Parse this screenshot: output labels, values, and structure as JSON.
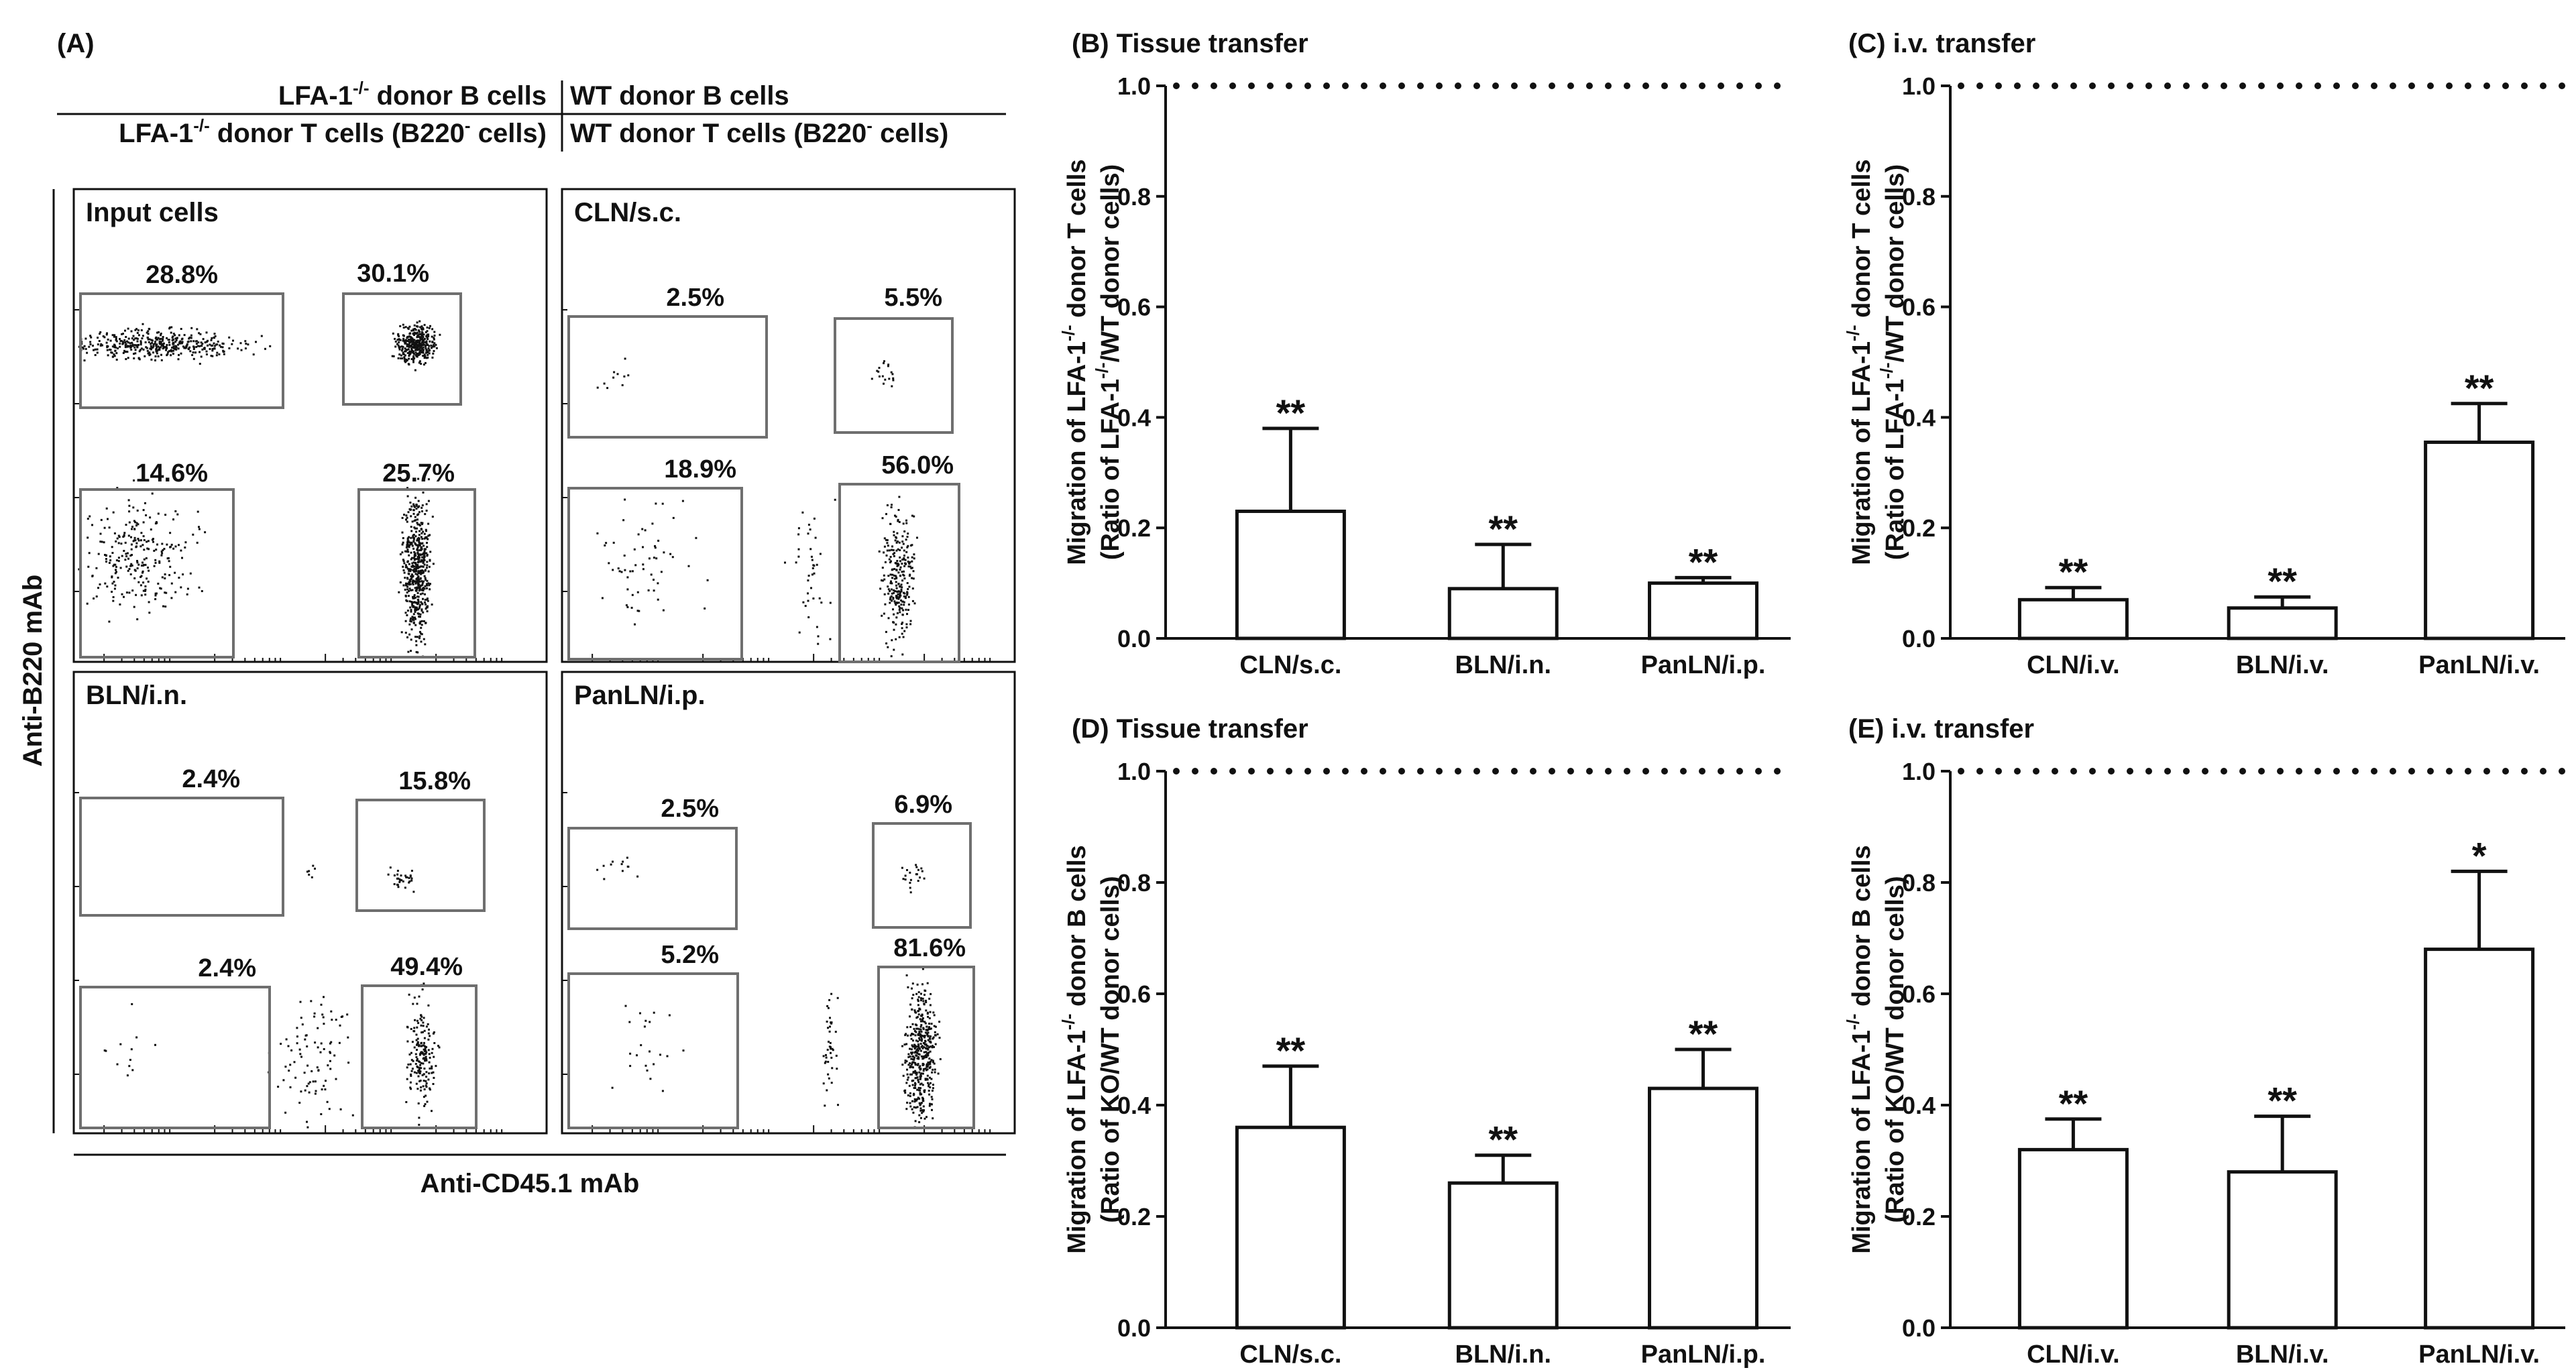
{
  "colors": {
    "ink": "#111111",
    "gate": "#6f6f6f",
    "bar_fill": "#ffffff"
  },
  "panel_a": {
    "label": "(A)",
    "header": {
      "row1_left_prefix": "LFA-1",
      "row1_left_sup": "-/-",
      "row1_left_suffix": " donor B cells",
      "row1_right": "WT donor B cells",
      "row2_left_prefix": "LFA-1",
      "row2_left_sup": "-/-",
      "row2_left_mid": " donor T cells (B220",
      "row2_left_sup2": "-",
      "row2_left_end": " cells)",
      "row2_right_prefix": "WT donor T cells (B220",
      "row2_right_sup": "-",
      "row2_right_end": " cells)"
    },
    "y_axis_label": "Anti-B220 mAb",
    "x_axis_label": "Anti-CD45.1 mAb",
    "plots": [
      {
        "title": "Input cells",
        "gates": {
          "top_left": "28.8%",
          "top_right": "30.1%",
          "bottom_left": "14.6%",
          "bottom_right": "25.7%"
        }
      },
      {
        "title": "CLN/s.c.",
        "gates": {
          "top_left": "2.5%",
          "top_right": "5.5%",
          "bottom_left": "18.9%",
          "bottom_right": "56.0%"
        }
      },
      {
        "title": "BLN/i.n.",
        "gates": {
          "top_left": "2.4%",
          "top_right": "15.8%",
          "bottom_left": "2.4%",
          "bottom_right": "49.4%"
        }
      },
      {
        "title": "PanLN/i.p.",
        "gates": {
          "top_left": "2.5%",
          "top_right": "6.9%",
          "bottom_left": "5.2%",
          "bottom_right": "81.6%"
        }
      }
    ]
  },
  "chart_data": [
    {
      "id": "B",
      "type": "bar",
      "label": "(B) Tissue transfer",
      "ylabel_line1": "Migration of LFA-1-/- donor T cells",
      "ylabel_line2": "(Ratio of LFA-1-/-/WT donor cells)",
      "categories": [
        "CLN/s.c.",
        "BLN/i.n.",
        "PanLN/i.p."
      ],
      "values": [
        0.23,
        0.09,
        0.1
      ],
      "errors": [
        0.15,
        0.08,
        0.01
      ],
      "significance": [
        "**",
        "**",
        "**"
      ],
      "ylim": [
        0,
        1.0
      ],
      "yticks": [
        "0.0",
        "0.2",
        "0.4",
        "0.6",
        "0.8",
        "1.0"
      ],
      "reference_line": 1.0
    },
    {
      "id": "C",
      "type": "bar",
      "label": "(C) i.v. transfer",
      "ylabel_line1": "Migration of LFA-1-/- donor T cells",
      "ylabel_line2": "(Ratio of LFA-1-/-/WT donor cells)",
      "categories": [
        "CLN/i.v.",
        "BLN/i.v.",
        "PanLN/i.v."
      ],
      "values": [
        0.07,
        0.055,
        0.355
      ],
      "errors": [
        0.022,
        0.02,
        0.07
      ],
      "significance": [
        "**",
        "**",
        "**"
      ],
      "ylim": [
        0,
        1.0
      ],
      "yticks": [
        "0.0",
        "0.2",
        "0.4",
        "0.6",
        "0.8",
        "1.0"
      ],
      "reference_line": 1.0
    },
    {
      "id": "D",
      "type": "bar",
      "label": "(D) Tissue transfer",
      "ylabel_line1": "Migration of LFA-1-/- donor B cells",
      "ylabel_line2": "(Ratio of KO/WT donor cells)",
      "categories": [
        "CLN/s.c.",
        "BLN/i.n.",
        "PanLN/i.p."
      ],
      "values": [
        0.36,
        0.26,
        0.43
      ],
      "errors": [
        0.11,
        0.05,
        0.07
      ],
      "significance": [
        "**",
        "**",
        "**"
      ],
      "ylim": [
        0,
        1.0
      ],
      "yticks": [
        "0.0",
        "0.2",
        "0.4",
        "0.6",
        "0.8",
        "1.0"
      ],
      "reference_line": 1.0
    },
    {
      "id": "E",
      "type": "bar",
      "label": "(E) i.v. transfer",
      "ylabel_line1": "Migration of LFA-1-/- donor B cells",
      "ylabel_line2": "(Ratio of KO/WT donor cells)",
      "categories": [
        "CLN/i.v.",
        "BLN/i.v.",
        "PanLN/i.v."
      ],
      "values": [
        0.32,
        0.28,
        0.68
      ],
      "errors": [
        0.055,
        0.1,
        0.14
      ],
      "significance": [
        "**",
        "**",
        "*"
      ],
      "ylim": [
        0,
        1.0
      ],
      "yticks": [
        "0.0",
        "0.2",
        "0.4",
        "0.6",
        "0.8",
        "1.0"
      ],
      "reference_line": 1.0
    }
  ]
}
